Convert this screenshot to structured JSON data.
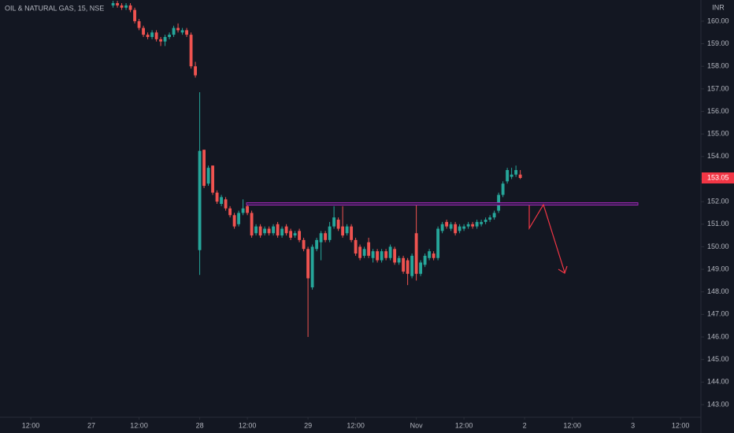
{
  "chart_data": {
    "type": "candlestick",
    "title": "OIL & NATURAL GAS, 15, NSE",
    "currency": "INR",
    "last_price": 153.05,
    "up_color": "#26a69a",
    "down_color": "#ef5350",
    "last_price_color": "#f23645",
    "xlim": [
      -21.1,
      140.7
    ],
    "ylim": [
      142.44,
      160.94
    ],
    "xticks": [
      {
        "value": -14,
        "label": "12:00"
      },
      {
        "value": 0,
        "label": "27"
      },
      {
        "value": 11,
        "label": "12:00"
      },
      {
        "value": 25,
        "label": "28"
      },
      {
        "value": 36,
        "label": "12:00"
      },
      {
        "value": 50,
        "label": "29"
      },
      {
        "value": 61,
        "label": "12:00"
      },
      {
        "value": 75,
        "label": "Nov"
      },
      {
        "value": 86,
        "label": "12:00"
      },
      {
        "value": 100,
        "label": "2"
      },
      {
        "value": 111,
        "label": "12:00"
      },
      {
        "value": 125,
        "label": "3"
      },
      {
        "value": 136,
        "label": "12:00"
      }
    ],
    "yticks": [
      {
        "value": 143,
        "label": "143.00"
      },
      {
        "value": 144,
        "label": "144.00"
      },
      {
        "value": 145,
        "label": "145.00"
      },
      {
        "value": 146,
        "label": "146.00"
      },
      {
        "value": 147,
        "label": "147.00"
      },
      {
        "value": 148,
        "label": "148.00"
      },
      {
        "value": 149,
        "label": "149.00"
      },
      {
        "value": 150,
        "label": "150.00"
      },
      {
        "value": 151,
        "label": "151.00"
      },
      {
        "value": 152,
        "label": "152.00"
      },
      {
        "value": 153,
        "label": "153.00"
      },
      {
        "value": 154,
        "label": "154.00"
      },
      {
        "value": 155,
        "label": "155.00"
      },
      {
        "value": 156,
        "label": "156.00"
      },
      {
        "value": 157,
        "label": "157.00"
      },
      {
        "value": 158,
        "label": "158.00"
      },
      {
        "value": 159,
        "label": "159.00"
      },
      {
        "value": 160,
        "label": "160.00"
      }
    ],
    "x": [
      5,
      6,
      7,
      8,
      9,
      10,
      11,
      12,
      13,
      14,
      15,
      16,
      17,
      18,
      19,
      20,
      21,
      22,
      23,
      24,
      25,
      26,
      27,
      28,
      29,
      30,
      31,
      32,
      33,
      34,
      35,
      36,
      37,
      38,
      39,
      40,
      41,
      42,
      43,
      44,
      45,
      46,
      47,
      48,
      49,
      50,
      51,
      52,
      53,
      54,
      55,
      56,
      57,
      58,
      59,
      60,
      61,
      62,
      63,
      64,
      65,
      66,
      67,
      68,
      69,
      70,
      71,
      72,
      73,
      74,
      75,
      76,
      77,
      78,
      79,
      80,
      81,
      82,
      83,
      84,
      85,
      86,
      87,
      88,
      89,
      90,
      91,
      92,
      93,
      94,
      95,
      96,
      97,
      98,
      99
    ],
    "open": [
      160.7,
      160.8,
      160.7,
      160.6,
      160.7,
      160.5,
      160.0,
      159.7,
      159.4,
      159.3,
      159.5,
      159.2,
      159.1,
      159.3,
      159.4,
      159.7,
      159.5,
      159.6,
      159.4,
      158.0,
      149.85,
      154.3,
      152.8,
      153.6,
      152.4,
      151.9,
      152.1,
      151.7,
      151.4,
      151.0,
      151.5,
      151.8,
      151.5,
      150.6,
      150.9,
      150.6,
      150.8,
      150.6,
      151.0,
      150.5,
      150.9,
      150.7,
      150.5,
      150.7,
      150.3,
      149.9,
      148.2,
      149.9,
      150.2,
      150.6,
      150.3,
      150.9,
      151.2,
      150.9,
      150.6,
      150.9,
      150.3,
      150.0,
      149.6,
      150.2,
      149.5,
      149.8,
      149.4,
      149.8,
      149.5,
      149.9,
      149.3,
      149.5,
      149.4,
      148.7,
      150.6,
      148.8,
      149.2,
      149.5,
      149.7,
      149.5,
      150.7,
      151.1,
      150.8,
      151.0,
      150.7,
      150.8,
      150.9,
      151.0,
      150.9,
      151.0,
      151.1,
      151.2,
      151.3,
      151.6,
      152.3,
      152.9,
      153.1,
      153.2,
      153.2
    ],
    "high": [
      160.9,
      160.9,
      160.8,
      160.8,
      160.8,
      160.6,
      160.1,
      159.8,
      159.5,
      159.6,
      159.6,
      159.3,
      159.4,
      159.5,
      159.8,
      159.9,
      159.7,
      159.7,
      159.5,
      158.2,
      156.85,
      154.3,
      153.6,
      153.6,
      152.5,
      152.3,
      152.2,
      151.8,
      151.5,
      151.6,
      152.1,
      151.9,
      151.6,
      151.0,
      151.0,
      150.9,
      150.9,
      151.0,
      151.1,
      150.9,
      151.0,
      150.8,
      150.7,
      150.8,
      150.4,
      150.0,
      150.1,
      150.4,
      150.7,
      150.7,
      151.1,
      151.8,
      151.3,
      151.8,
      151.0,
      151.0,
      150.4,
      150.1,
      150.0,
      150.4,
      149.9,
      149.9,
      149.9,
      149.9,
      150.1,
      150.0,
      149.6,
      149.6,
      149.5,
      149.7,
      151.85,
      149.4,
      149.7,
      149.9,
      149.8,
      150.9,
      151.1,
      151.2,
      151.1,
      151.1,
      151.0,
      151.0,
      151.1,
      151.1,
      151.2,
      151.2,
      151.3,
      151.4,
      151.6,
      152.4,
      152.9,
      153.5,
      153.5,
      153.6,
      153.4
    ],
    "low": [
      160.6,
      160.6,
      160.5,
      160.5,
      160.4,
      159.9,
      159.6,
      159.3,
      159.2,
      159.2,
      159.1,
      158.9,
      158.9,
      159.2,
      159.3,
      159.5,
      159.4,
      159.3,
      157.9,
      157.5,
      148.75,
      152.6,
      152.7,
      152.3,
      151.9,
      151.8,
      151.6,
      151.3,
      150.8,
      150.9,
      151.4,
      151.4,
      150.4,
      150.5,
      150.4,
      150.5,
      150.5,
      150.5,
      150.4,
      150.4,
      150.5,
      150.3,
      150.4,
      150.2,
      149.8,
      146.0,
      148.1,
      149.8,
      149.4,
      150.2,
      150.2,
      150.8,
      150.7,
      150.4,
      150.5,
      150.2,
      149.6,
      149.4,
      149.5,
      149.5,
      149.3,
      149.3,
      149.3,
      149.4,
      149.4,
      149.2,
      149.2,
      148.8,
      148.3,
      148.6,
      148.5,
      148.7,
      149.1,
      149.4,
      149.4,
      149.4,
      150.6,
      150.8,
      150.7,
      150.5,
      150.6,
      150.7,
      150.8,
      150.8,
      150.8,
      150.9,
      151.0,
      151.1,
      151.2,
      151.5,
      152.2,
      152.8,
      153.0,
      153.1,
      153.0
    ],
    "close": [
      160.8,
      160.7,
      160.6,
      160.7,
      160.5,
      160.0,
      159.7,
      159.4,
      159.3,
      159.5,
      159.2,
      159.1,
      159.3,
      159.4,
      159.7,
      159.6,
      159.6,
      159.4,
      158.0,
      157.6,
      154.25,
      152.7,
      153.5,
      152.4,
      152.0,
      152.2,
      151.7,
      151.4,
      150.9,
      151.5,
      151.7,
      151.5,
      150.5,
      150.9,
      150.5,
      150.8,
      150.6,
      150.9,
      150.5,
      150.8,
      150.6,
      150.4,
      150.6,
      150.3,
      149.9,
      148.6,
      150.0,
      150.3,
      150.6,
      150.3,
      150.9,
      151.3,
      150.8,
      150.5,
      150.9,
      150.3,
      149.7,
      149.5,
      149.9,
      149.6,
      149.8,
      149.4,
      149.8,
      149.5,
      150.0,
      149.3,
      149.5,
      148.9,
      148.8,
      149.6,
      148.8,
      149.3,
      149.6,
      149.8,
      149.5,
      150.8,
      151.0,
      150.9,
      151.0,
      150.6,
      150.9,
      150.9,
      151.0,
      150.9,
      151.1,
      151.1,
      151.2,
      151.3,
      151.5,
      152.3,
      152.8,
      153.4,
      153.2,
      153.4,
      153.05
    ]
  }
}
